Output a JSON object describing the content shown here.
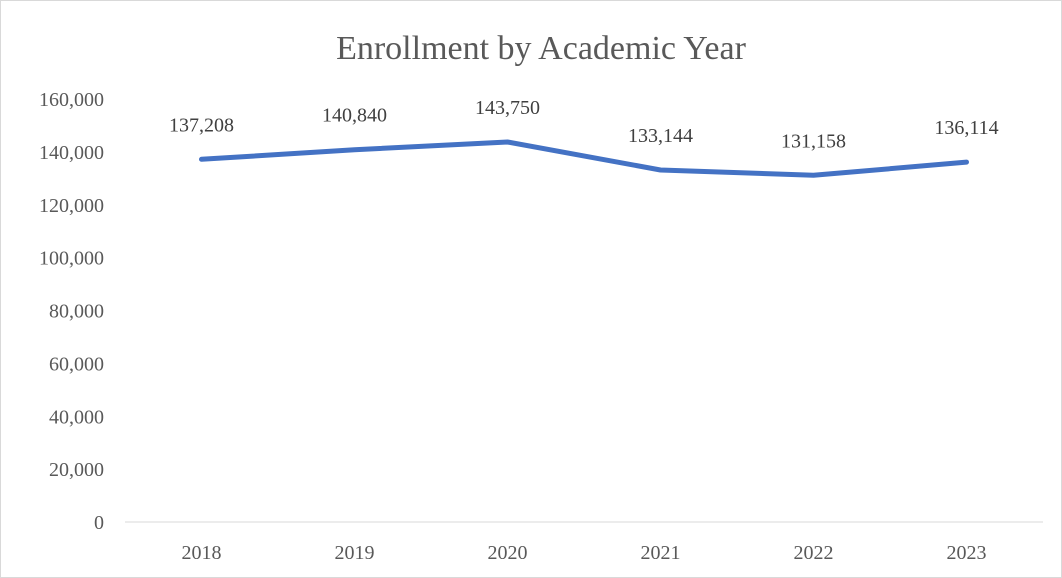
{
  "chart_data": {
    "type": "line",
    "title": "Enrollment by Academic Year",
    "xlabel": "",
    "ylabel": "",
    "categories": [
      "2018",
      "2019",
      "2020",
      "2021",
      "2022",
      "2023"
    ],
    "series": [
      {
        "values": [
          137208,
          140840,
          143750,
          133144,
          131158,
          136114
        ],
        "data_labels": [
          "137,208",
          "140,840",
          "143,750",
          "133,144",
          "131,158",
          "136,114"
        ],
        "color": "#4472C4"
      }
    ],
    "ylim": [
      0,
      160000
    ],
    "yticks": [
      0,
      20000,
      40000,
      60000,
      80000,
      100000,
      120000,
      140000,
      160000
    ],
    "ytick_labels": [
      "0",
      "20,000",
      "40,000",
      "60,000",
      "80,000",
      "100,000",
      "120,000",
      "140,000",
      "160,000"
    ],
    "grid": false,
    "legend": "none",
    "axis_color": "#d9d9d9",
    "text_color": "#595959"
  }
}
